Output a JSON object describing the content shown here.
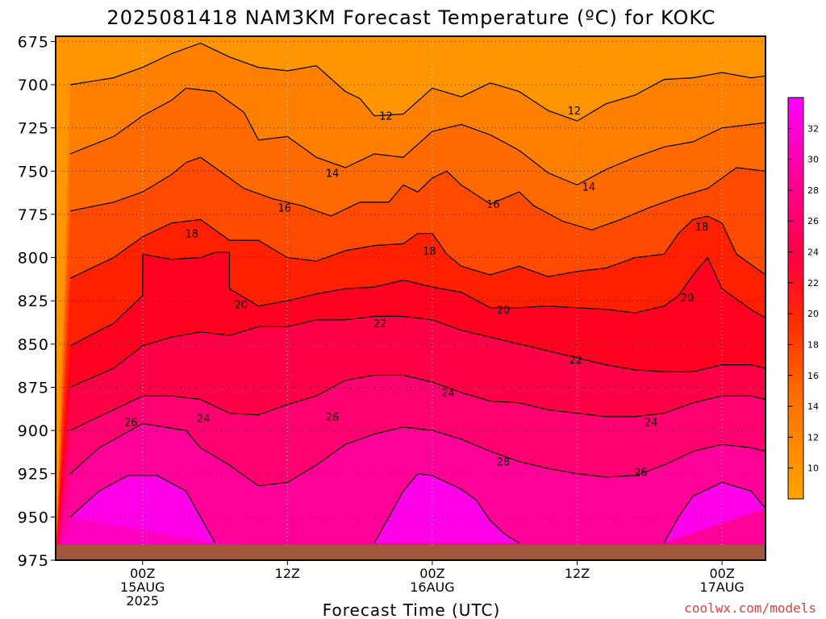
{
  "title": "2025081418 NAM3KM Forecast Temperature (ºC) for KOKC",
  "credit": "coolwx.com/models",
  "colors": {
    "ground": "#a0573a",
    "frame": "#000000",
    "credit": "#e04040"
  },
  "chart_data": {
    "type": "heatmap",
    "title": "2025081418 NAM3KM Forecast Temperature (ºC) for KOKC",
    "xlabel": "Forecast Time (UTC)",
    "ylabel": "",
    "x_axis": {
      "range_hours_from_00Z_15AUG": [
        -6,
        43
      ],
      "ticks": [
        {
          "hour": 0,
          "lines": [
            "00Z",
            "15AUG",
            "2025"
          ]
        },
        {
          "hour": 10,
          "lines": [
            "12Z"
          ]
        },
        {
          "hour": 20,
          "lines": [
            "00Z",
            "16AUG"
          ]
        },
        {
          "hour": 30,
          "lines": [
            "12Z"
          ]
        },
        {
          "hour": 40,
          "lines": [
            "00Z",
            "17AUG"
          ]
        }
      ]
    },
    "y_axis": {
      "label": "",
      "range_hPa": [
        975,
        672
      ],
      "ticks": [
        675,
        700,
        725,
        750,
        775,
        800,
        825,
        850,
        875,
        900,
        925,
        950,
        975
      ],
      "gridlines": true
    },
    "colorbar": {
      "ticks": [
        10,
        12,
        14,
        16,
        18,
        20,
        22,
        24,
        26,
        28,
        30,
        32
      ],
      "levels": [
        8,
        10,
        12,
        14,
        16,
        18,
        20,
        22,
        24,
        26,
        28,
        30,
        32,
        34
      ],
      "colors": [
        "#ffa500",
        "#ff9500",
        "#ff8000",
        "#ff6a00",
        "#ff4a00",
        "#ff2000",
        "#ff0020",
        "#ff0048",
        "#ff0070",
        "#ff0098",
        "#ff00c0",
        "#ff00e0",
        "#ff00ff"
      ]
    },
    "contours": [
      {
        "level": 12,
        "points": [
          [
            -5,
            700
          ],
          [
            -2,
            696
          ],
          [
            0,
            690
          ],
          [
            2,
            682
          ],
          [
            4,
            676
          ],
          [
            6,
            684
          ],
          [
            8,
            690
          ],
          [
            10,
            692
          ],
          [
            12,
            689
          ],
          [
            14,
            704
          ],
          [
            15,
            708
          ],
          [
            16,
            718
          ],
          [
            18,
            717
          ],
          [
            20,
            702
          ],
          [
            22,
            707
          ],
          [
            24,
            699
          ],
          [
            26,
            704
          ],
          [
            28,
            715
          ],
          [
            30,
            721
          ],
          [
            32,
            711
          ],
          [
            34,
            706
          ],
          [
            36,
            697
          ],
          [
            38,
            696
          ],
          [
            40,
            693
          ],
          [
            42,
            696
          ],
          [
            43,
            695
          ]
        ]
      },
      {
        "level": 14,
        "points": [
          [
            -5,
            740
          ],
          [
            -2,
            730
          ],
          [
            0,
            718
          ],
          [
            2,
            709
          ],
          [
            3,
            702
          ],
          [
            5,
            704
          ],
          [
            7,
            716
          ],
          [
            8,
            732
          ],
          [
            10,
            730
          ],
          [
            12,
            742
          ],
          [
            14,
            748
          ],
          [
            16,
            740
          ],
          [
            18,
            742
          ],
          [
            20,
            727
          ],
          [
            22,
            723
          ],
          [
            24,
            729
          ],
          [
            26,
            738
          ],
          [
            28,
            751
          ],
          [
            30,
            758
          ],
          [
            32,
            749
          ],
          [
            34,
            742
          ],
          [
            36,
            736
          ],
          [
            38,
            733
          ],
          [
            40,
            725
          ],
          [
            42,
            723
          ],
          [
            43,
            722
          ]
        ]
      },
      {
        "level": 16,
        "points": [
          [
            -5,
            773
          ],
          [
            -2,
            768
          ],
          [
            0,
            762
          ],
          [
            2,
            752
          ],
          [
            3,
            745
          ],
          [
            4,
            742
          ],
          [
            5,
            748
          ],
          [
            7,
            760
          ],
          [
            9,
            766
          ],
          [
            11,
            770
          ],
          [
            13,
            776
          ],
          [
            15,
            768
          ],
          [
            17,
            768
          ],
          [
            18,
            758
          ],
          [
            19,
            762
          ],
          [
            20,
            754
          ],
          [
            21,
            750
          ],
          [
            22,
            758
          ],
          [
            24,
            769
          ],
          [
            26,
            762
          ],
          [
            27,
            770
          ],
          [
            29,
            779
          ],
          [
            31,
            784
          ],
          [
            33,
            778
          ],
          [
            35,
            771
          ],
          [
            37,
            765
          ],
          [
            39,
            760
          ],
          [
            41,
            748
          ],
          [
            43,
            750
          ]
        ]
      },
      {
        "level": 18,
        "points": [
          [
            -5,
            812
          ],
          [
            -2,
            800
          ],
          [
            0,
            788
          ],
          [
            2,
            780
          ],
          [
            4,
            778
          ],
          [
            6,
            790
          ],
          [
            8,
            790
          ],
          [
            10,
            800
          ],
          [
            12,
            802
          ],
          [
            14,
            796
          ],
          [
            16,
            793
          ],
          [
            18,
            792
          ],
          [
            19,
            786
          ],
          [
            20,
            786
          ],
          [
            21,
            798
          ],
          [
            22,
            805
          ],
          [
            24,
            810
          ],
          [
            26,
            805
          ],
          [
            28,
            811
          ],
          [
            30,
            808
          ],
          [
            32,
            806
          ],
          [
            34,
            800
          ],
          [
            36,
            798
          ],
          [
            37,
            786
          ],
          [
            38,
            778
          ],
          [
            39,
            776
          ],
          [
            40,
            780
          ],
          [
            41,
            798
          ],
          [
            43,
            810
          ]
        ]
      },
      {
        "level": 20,
        "points": [
          [
            -5,
            851
          ],
          [
            -2,
            838
          ],
          [
            0,
            822
          ],
          [
            0,
            798
          ],
          [
            2,
            801
          ],
          [
            4,
            800
          ],
          [
            5,
            797
          ],
          [
            6,
            797
          ],
          [
            6,
            818
          ],
          [
            8,
            828
          ],
          [
            10,
            825
          ],
          [
            12,
            821
          ],
          [
            14,
            818
          ],
          [
            16,
            817
          ],
          [
            18,
            813
          ],
          [
            20,
            817
          ],
          [
            22,
            820
          ],
          [
            24,
            829
          ],
          [
            26,
            829
          ],
          [
            28,
            828
          ],
          [
            30,
            829
          ],
          [
            32,
            830
          ],
          [
            34,
            832
          ],
          [
            36,
            828
          ],
          [
            37,
            822
          ],
          [
            38,
            810
          ],
          [
            39,
            800
          ],
          [
            40,
            818
          ],
          [
            42,
            830
          ],
          [
            43,
            835
          ]
        ]
      },
      {
        "level": 22,
        "points": [
          [
            -5,
            875
          ],
          [
            -2,
            864
          ],
          [
            0,
            851
          ],
          [
            2,
            846
          ],
          [
            4,
            843
          ],
          [
            6,
            845
          ],
          [
            8,
            840
          ],
          [
            10,
            840
          ],
          [
            12,
            836
          ],
          [
            14,
            836
          ],
          [
            16,
            834
          ],
          [
            18,
            834
          ],
          [
            20,
            836
          ],
          [
            22,
            842
          ],
          [
            24,
            846
          ],
          [
            26,
            850
          ],
          [
            28,
            854
          ],
          [
            30,
            858
          ],
          [
            32,
            862
          ],
          [
            34,
            865
          ],
          [
            36,
            866
          ],
          [
            38,
            866
          ],
          [
            40,
            862
          ],
          [
            42,
            862
          ],
          [
            43,
            864
          ]
        ]
      },
      {
        "level": 24,
        "points": [
          [
            -5,
            900
          ],
          [
            -2,
            888
          ],
          [
            0,
            880
          ],
          [
            2,
            880
          ],
          [
            4,
            882
          ],
          [
            6,
            890
          ],
          [
            8,
            891
          ],
          [
            10,
            885
          ],
          [
            12,
            880
          ],
          [
            14,
            871
          ],
          [
            16,
            868
          ],
          [
            18,
            868
          ],
          [
            20,
            872
          ],
          [
            22,
            878
          ],
          [
            24,
            883
          ],
          [
            26,
            884
          ],
          [
            28,
            888
          ],
          [
            30,
            890
          ],
          [
            32,
            892
          ],
          [
            34,
            892
          ],
          [
            36,
            890
          ],
          [
            38,
            884
          ],
          [
            40,
            880
          ],
          [
            42,
            880
          ],
          [
            43,
            882
          ]
        ]
      },
      {
        "level": 26,
        "points": [
          [
            -5,
            925
          ],
          [
            -3,
            910
          ],
          [
            0,
            896
          ],
          [
            3,
            900
          ],
          [
            4,
            910
          ],
          [
            6,
            920
          ],
          [
            8,
            932
          ],
          [
            10,
            930
          ],
          [
            12,
            920
          ],
          [
            14,
            908
          ],
          [
            16,
            902
          ],
          [
            18,
            898
          ],
          [
            20,
            900
          ],
          [
            22,
            905
          ],
          [
            24,
            912
          ],
          [
            26,
            918
          ],
          [
            28,
            922
          ],
          [
            30,
            925
          ],
          [
            32,
            927
          ],
          [
            34,
            926
          ],
          [
            36,
            920
          ],
          [
            38,
            912
          ],
          [
            40,
            908
          ],
          [
            42,
            910
          ],
          [
            43,
            912
          ]
        ]
      },
      {
        "level": 28,
        "points": [
          [
            -5,
            950
          ],
          [
            -3,
            935
          ],
          [
            -1,
            926
          ],
          [
            1,
            926
          ],
          [
            3,
            935
          ],
          [
            4,
            950
          ],
          [
            5,
            965
          ]
        ]
      },
      {
        "level": 28,
        "points": [
          [
            16,
            965
          ],
          [
            17,
            950
          ],
          [
            18,
            935
          ],
          [
            19,
            925
          ],
          [
            20,
            926
          ],
          [
            21,
            930
          ],
          [
            22,
            934
          ],
          [
            23,
            940
          ],
          [
            24,
            952
          ],
          [
            25,
            960
          ],
          [
            26,
            965
          ]
        ]
      },
      {
        "level": 28,
        "points": [
          [
            36,
            965
          ],
          [
            37,
            950
          ],
          [
            38,
            938
          ],
          [
            40,
            930
          ],
          [
            42,
            935
          ],
          [
            43,
            945
          ]
        ]
      }
    ],
    "contour_labels": [
      {
        "text": "12",
        "hour": 16.8,
        "p": 718
      },
      {
        "text": "12",
        "hour": 29.8,
        "p": 715
      },
      {
        "text": "14",
        "hour": 13.1,
        "p": 751
      },
      {
        "text": "14",
        "hour": 30.8,
        "p": 759
      },
      {
        "text": "16",
        "hour": 9.8,
        "p": 771
      },
      {
        "text": "16",
        "hour": 24.2,
        "p": 769
      },
      {
        "text": "18",
        "hour": 3.4,
        "p": 786
      },
      {
        "text": "18",
        "hour": 19.8,
        "p": 796
      },
      {
        "text": "18",
        "hour": 38.6,
        "p": 782
      },
      {
        "text": "20",
        "hour": 6.8,
        "p": 827
      },
      {
        "text": "20",
        "hour": 24.9,
        "p": 830
      },
      {
        "text": "20",
        "hour": 37.6,
        "p": 823
      },
      {
        "text": "22",
        "hour": 16.4,
        "p": 838
      },
      {
        "text": "22",
        "hour": 29.9,
        "p": 859
      },
      {
        "text": "24",
        "hour": 4.2,
        "p": 893
      },
      {
        "text": "24",
        "hour": 21.1,
        "p": 878
      },
      {
        "text": "24",
        "hour": 35.1,
        "p": 895
      },
      {
        "text": "26",
        "hour": -0.8,
        "p": 895
      },
      {
        "text": "26",
        "hour": 13.1,
        "p": 892
      },
      {
        "text": "26",
        "hour": 34.4,
        "p": 924
      },
      {
        "text": "28",
        "hour": 24.9,
        "p": 918
      }
    ]
  }
}
